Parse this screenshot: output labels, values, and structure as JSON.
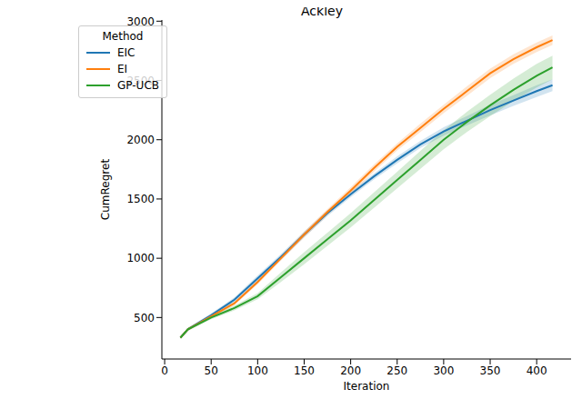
{
  "chart_data": {
    "type": "line",
    "title": "Ackley",
    "x_label": "Iteration",
    "y_label": "CumRegret",
    "legend_title": "Method",
    "legend": "upper left",
    "grid": false,
    "x": [
      17,
      25,
      50,
      75,
      100,
      125,
      150,
      175,
      200,
      225,
      250,
      275,
      300,
      325,
      350,
      375,
      400,
      417
    ],
    "xlim": [
      -3,
      437
    ],
    "xticks": [
      0,
      50,
      100,
      150,
      200,
      250,
      300,
      350,
      400
    ],
    "ylim": [
      150,
      3010
    ],
    "yticks": [
      500,
      1000,
      1500,
      2000,
      2500,
      3000
    ],
    "series": [
      {
        "name": "EIC",
        "color": "#1f77b4",
        "values": [
          330,
          400,
          520,
          650,
          830,
          1010,
          1200,
          1380,
          1540,
          1690,
          1830,
          1960,
          2070,
          2160,
          2250,
          2330,
          2410,
          2460
        ],
        "errors": [
          10,
          12,
          15,
          20,
          25,
          25,
          25,
          25,
          25,
          25,
          30,
          30,
          35,
          40,
          45,
          45,
          50,
          50
        ]
      },
      {
        "name": "EI",
        "color": "#ff7f0e",
        "values": [
          330,
          400,
          510,
          620,
          800,
          1000,
          1200,
          1390,
          1570,
          1760,
          1940,
          2100,
          2260,
          2410,
          2560,
          2680,
          2780,
          2840
        ],
        "errors": [
          10,
          12,
          15,
          15,
          20,
          20,
          25,
          25,
          30,
          30,
          30,
          35,
          35,
          40,
          40,
          40,
          40,
          40
        ]
      },
      {
        "name": "GP-UCB",
        "color": "#2ca02c",
        "values": [
          330,
          400,
          500,
          580,
          680,
          840,
          1000,
          1160,
          1320,
          1490,
          1660,
          1830,
          2000,
          2150,
          2290,
          2420,
          2540,
          2610
        ],
        "errors": [
          10,
          12,
          15,
          20,
          25,
          40,
          50,
          55,
          60,
          65,
          70,
          75,
          80,
          85,
          90,
          95,
          100,
          100
        ]
      }
    ]
  }
}
